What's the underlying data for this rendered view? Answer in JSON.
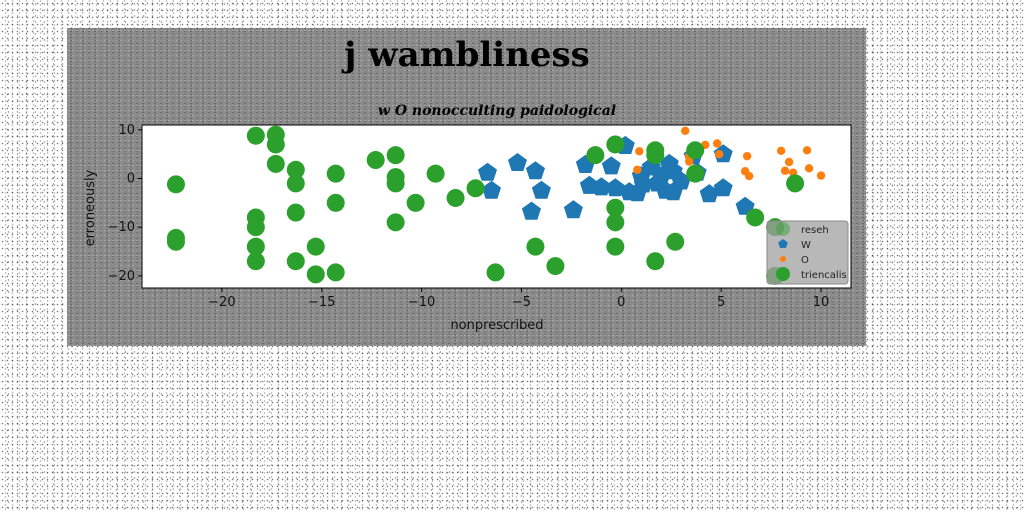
{
  "chart_data": {
    "type": "scatter",
    "title": "j wambliness",
    "subtitle": "w O nonocculting paidological",
    "xlabel": "nonprescribed",
    "ylabel": "erroneously",
    "xlim": [
      -24,
      11.5
    ],
    "ylim": [
      -22.5,
      11
    ],
    "xticks": [
      -20,
      -15,
      -10,
      -5,
      0,
      5,
      10
    ],
    "yticks": [
      10,
      0,
      -10,
      -20
    ],
    "xtick_labels": [
      "−20",
      "−15",
      "−10",
      "−5",
      "0",
      "5",
      "10"
    ],
    "ytick_labels": [
      "10",
      "0",
      "−10",
      "−20"
    ],
    "grid": false,
    "legend_position": "lower right",
    "series": [
      {
        "name": "reseh",
        "marker": "circle",
        "color": "#2ca02c",
        "points": []
      },
      {
        "name": "W",
        "marker": "pentagon",
        "color": "#1f77b4",
        "points": [
          [
            -6.7,
            1.2
          ],
          [
            -6.5,
            -2.5
          ],
          [
            -5.2,
            3.2
          ],
          [
            -4.3,
            1.5
          ],
          [
            -4.0,
            -2.5
          ],
          [
            -4.5,
            -6.8
          ],
          [
            -2.4,
            -6.5
          ],
          [
            -1.8,
            2.8
          ],
          [
            -1.6,
            -1.5
          ],
          [
            -1.0,
            -1.8
          ],
          [
            -0.5,
            2.5
          ],
          [
            -0.3,
            -2.0
          ],
          [
            0.2,
            6.7
          ],
          [
            0.4,
            -2.8
          ],
          [
            1.0,
            0.5
          ],
          [
            1.1,
            -1.2
          ],
          [
            0.8,
            -3.0
          ],
          [
            1.5,
            2.3
          ],
          [
            1.8,
            -1.0
          ],
          [
            2.0,
            0.5
          ],
          [
            2.2,
            -2.5
          ],
          [
            2.6,
            -2.8
          ],
          [
            2.4,
            3.0
          ],
          [
            2.6,
            1.5
          ],
          [
            3.0,
            -0.6
          ],
          [
            3.6,
            4.6
          ],
          [
            3.8,
            1.2
          ],
          [
            4.4,
            -3.2
          ],
          [
            5.1,
            5.0
          ],
          [
            5.1,
            -2.0
          ],
          [
            6.2,
            -5.8
          ]
        ]
      },
      {
        "name": "O",
        "marker": "circle",
        "color": "#ff7f0e",
        "points": [
          [
            3.2,
            9.8
          ],
          [
            0.9,
            5.6
          ],
          [
            0.8,
            1.8
          ],
          [
            3.4,
            4.6
          ],
          [
            3.4,
            3.5
          ],
          [
            4.2,
            6.9
          ],
          [
            4.8,
            7.2
          ],
          [
            4.9,
            5.0
          ],
          [
            6.3,
            4.6
          ],
          [
            6.2,
            1.5
          ],
          [
            6.4,
            0.5
          ],
          [
            8.0,
            5.7
          ],
          [
            8.4,
            3.4
          ],
          [
            8.2,
            1.6
          ],
          [
            8.6,
            1.2
          ],
          [
            9.3,
            5.8
          ],
          [
            9.4,
            2.1
          ],
          [
            10.0,
            0.6
          ]
        ]
      },
      {
        "name": "triencalis",
        "marker": "circle",
        "color": "#2ca02c",
        "points": [
          [
            -22.3,
            -1.2
          ],
          [
            -22.3,
            -12.2
          ],
          [
            -22.3,
            -13.0
          ],
          [
            -18.3,
            8.8
          ],
          [
            -18.3,
            -8.0
          ],
          [
            -18.3,
            -10.0
          ],
          [
            -18.3,
            -14.0
          ],
          [
            -18.3,
            -17.0
          ],
          [
            -17.3,
            9.0
          ],
          [
            -17.3,
            7.0
          ],
          [
            -17.3,
            3.0
          ],
          [
            -16.3,
            1.8
          ],
          [
            -16.3,
            -1.0
          ],
          [
            -16.3,
            -7.0
          ],
          [
            -16.3,
            -17.0
          ],
          [
            -15.3,
            -14.0
          ],
          [
            -15.3,
            -19.7
          ],
          [
            -14.3,
            1.0
          ],
          [
            -14.3,
            -5.0
          ],
          [
            -14.3,
            -19.3
          ],
          [
            -12.3,
            3.8
          ],
          [
            -11.3,
            4.8
          ],
          [
            -11.3,
            0.3
          ],
          [
            -11.3,
            -1.0
          ],
          [
            -11.3,
            -9.0
          ],
          [
            -10.3,
            -5.0
          ],
          [
            -9.3,
            1.0
          ],
          [
            -8.3,
            -4.0
          ],
          [
            -7.3,
            -2.0
          ],
          [
            -6.3,
            -19.3
          ],
          [
            -4.3,
            -14.0
          ],
          [
            -3.3,
            -18.0
          ],
          [
            -1.3,
            4.8
          ],
          [
            -0.3,
            7.0
          ],
          [
            -0.3,
            -6.0
          ],
          [
            -0.3,
            -9.0
          ],
          [
            -0.3,
            -14.0
          ],
          [
            1.7,
            5.8
          ],
          [
            1.7,
            4.8
          ],
          [
            1.7,
            -17.0
          ],
          [
            2.7,
            -13.0
          ],
          [
            3.7,
            5.8
          ],
          [
            3.7,
            1.0
          ],
          [
            6.7,
            -8.0
          ],
          [
            7.7,
            -10.0
          ],
          [
            7.7,
            -20.0
          ],
          [
            8.7,
            -1.0
          ]
        ]
      }
    ]
  }
}
